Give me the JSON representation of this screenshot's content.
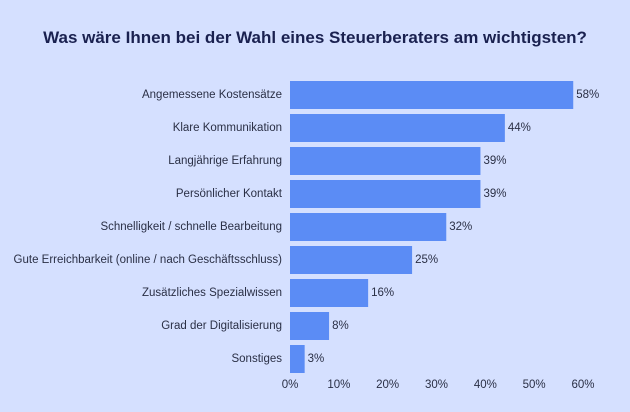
{
  "chart_data": {
    "type": "bar",
    "orientation": "horizontal",
    "title": "Was wäre Ihnen bei der Wahl eines Steuerberaters am wichtigsten?",
    "categories": [
      "Angemessene Kostensätze",
      "Klare Kommunikation",
      "Langjährige Erfahrung",
      "Persönlicher Kontakt",
      "Schnelligkeit / schnelle Bearbeitung",
      "Gute Erreichbarkeit (online / nach Geschäftsschluss)",
      "Zusätzliches Spezialwissen",
      "Grad der Digitalisierung",
      "Sonstiges"
    ],
    "values": [
      58,
      44,
      39,
      39,
      32,
      25,
      16,
      8,
      3
    ],
    "value_labels": [
      "58%",
      "44%",
      "39%",
      "39%",
      "32%",
      "25%",
      "16%",
      "8%",
      "3%"
    ],
    "xlim": [
      0,
      60
    ],
    "xticks": [
      0,
      10,
      20,
      30,
      40,
      50,
      60
    ],
    "xtick_labels": [
      "0%",
      "10%",
      "20%",
      "30%",
      "40%",
      "50%",
      "60%"
    ],
    "grid": false,
    "bar_color": "#5b8cf5",
    "background_color": "#d5e0ff",
    "title_color": "#1a2150"
  }
}
